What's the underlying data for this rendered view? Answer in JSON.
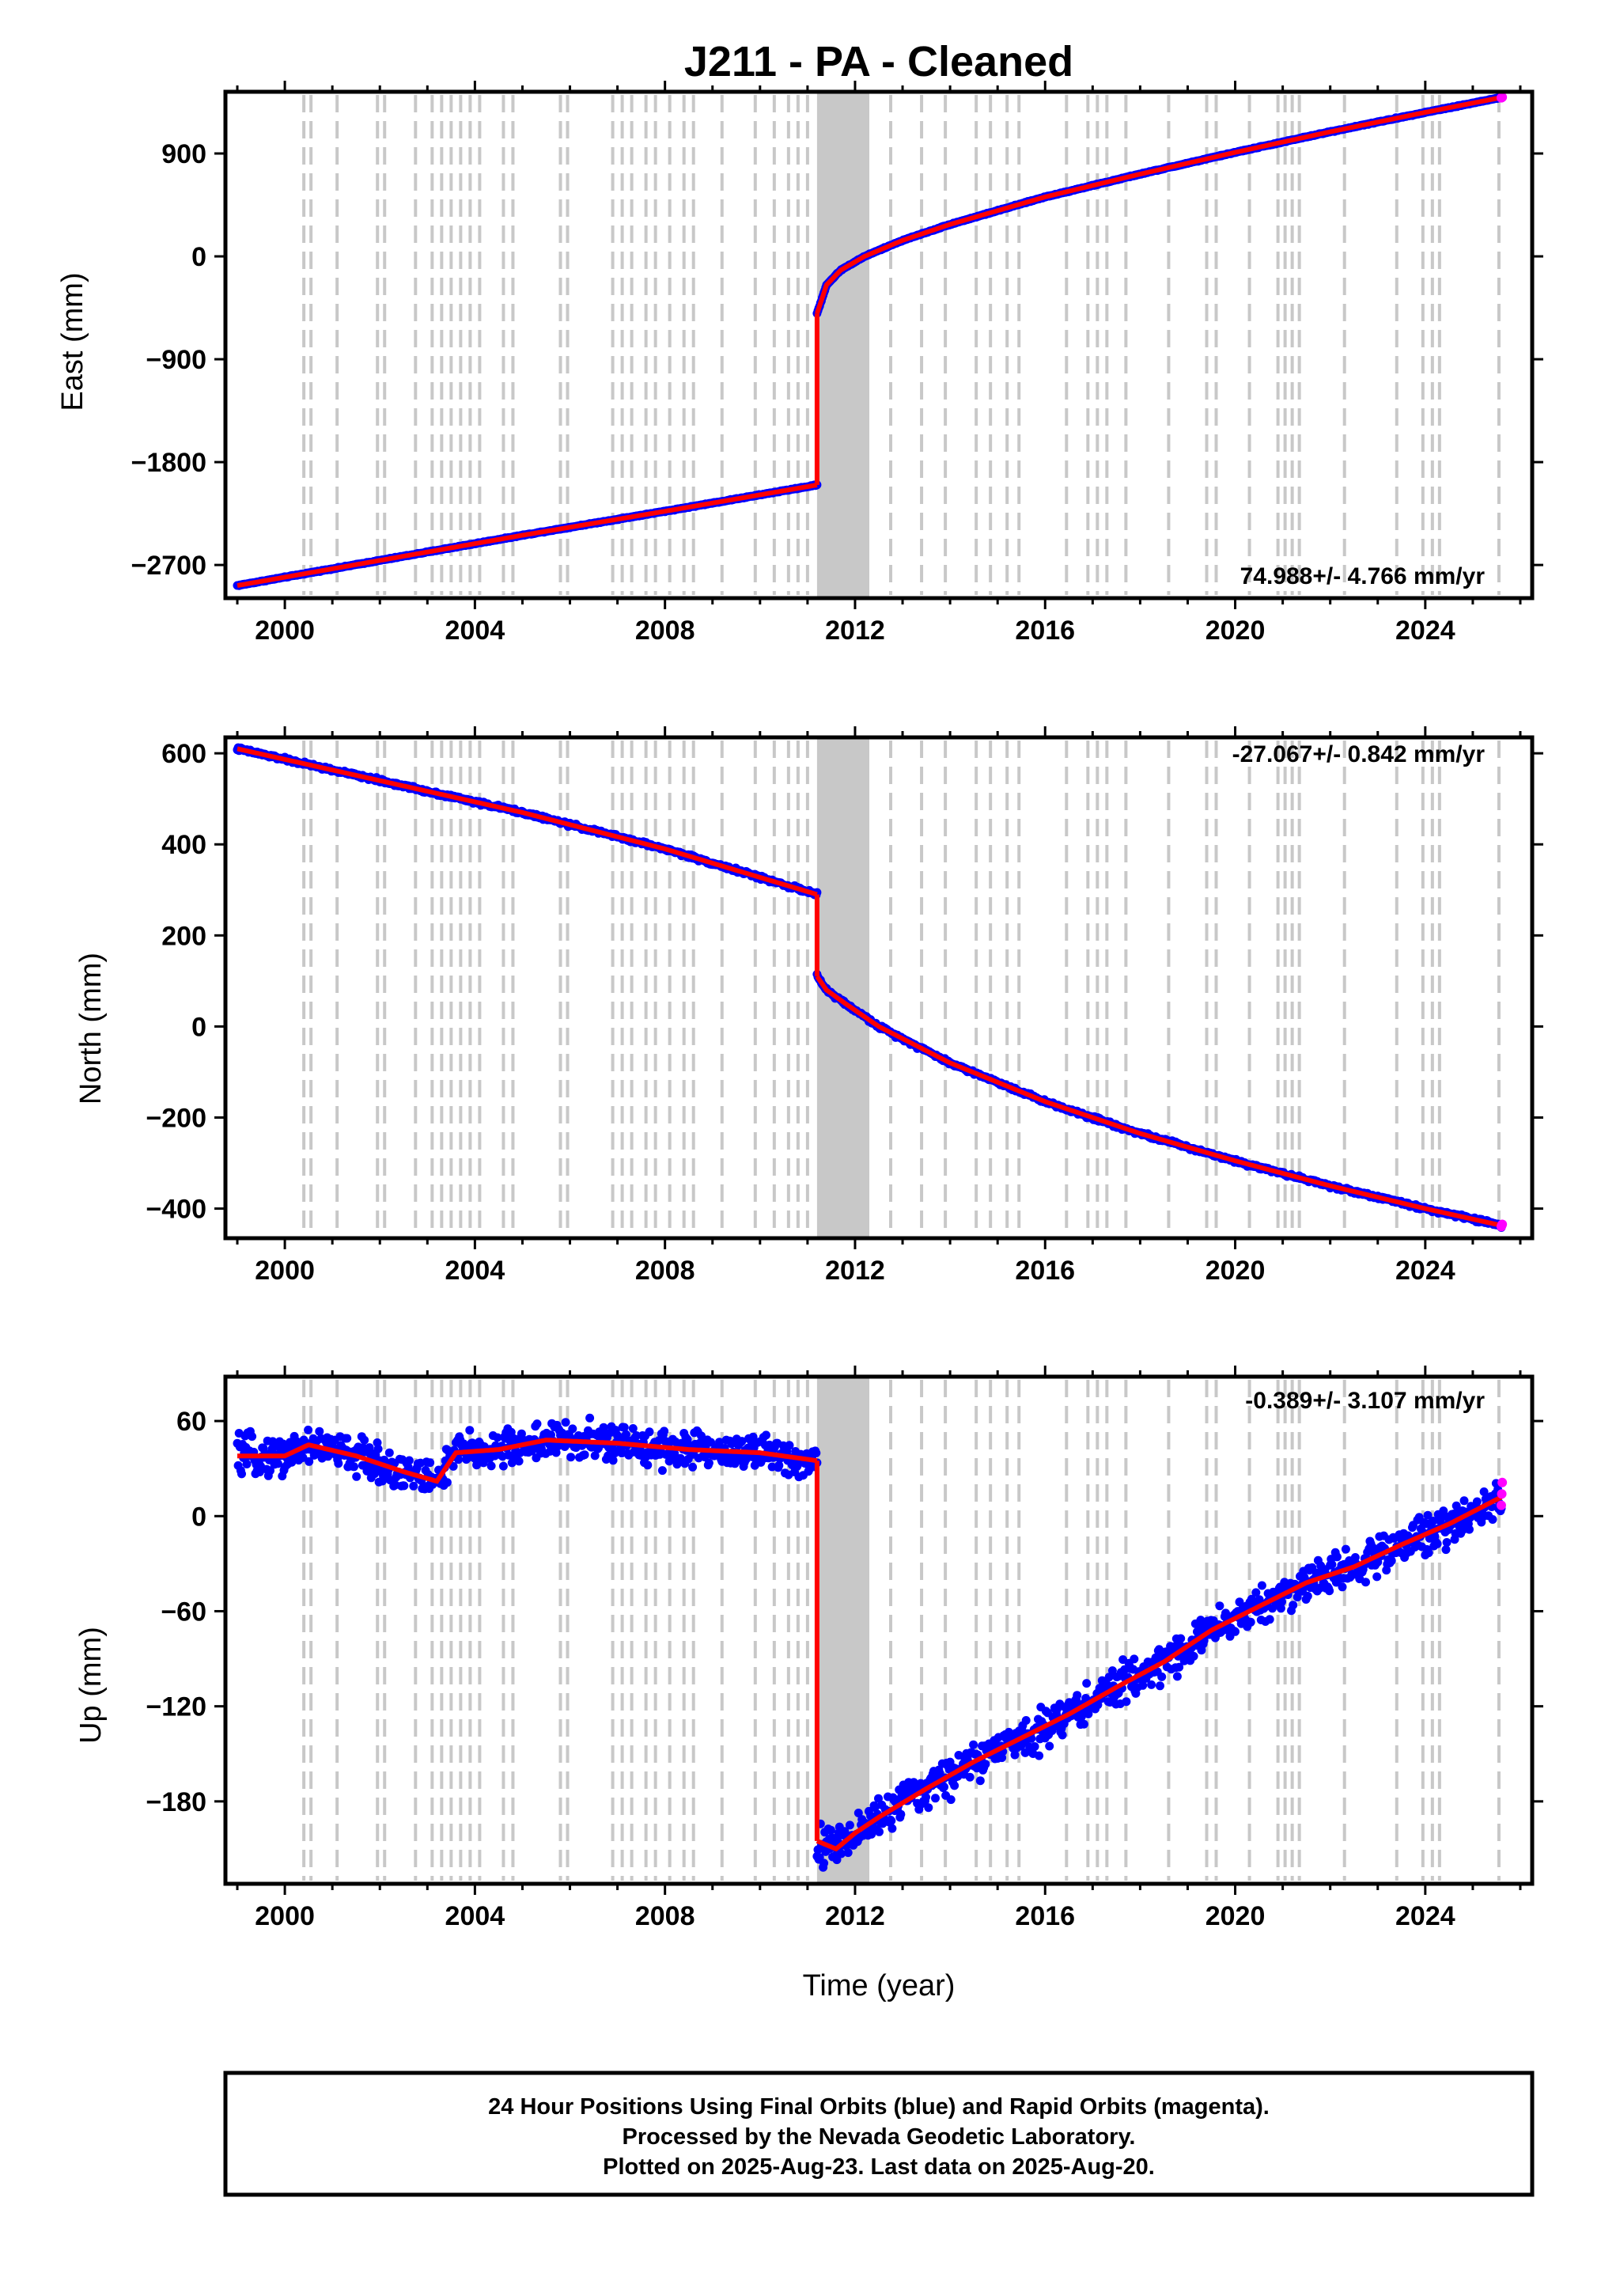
{
  "title": "J211  - PA - Cleaned",
  "xlabel": "Time (year)",
  "footer": {
    "line1": "24 Hour Positions Using Final Orbits (blue) and Rapid Orbits (magenta).",
    "line2": "Processed by the Nevada Geodetic Laboratory.",
    "line3": "Plotted on 2025-Aug-23. Last data on 2025-Aug-20."
  },
  "colors": {
    "final": "#0000ff",
    "rapid": "#ff00ff",
    "model": "#ff0000",
    "event_lines": "#c8c8c8"
  },
  "chart_data": [
    {
      "type": "scatter",
      "component": "East",
      "ylabel": "East (mm)",
      "rate_text": "74.988+/- 4.766 mm/yr",
      "rate_position": "bottom-right",
      "xlim": [
        1998.75,
        2026.25
      ],
      "ylim": [
        -2990,
        1440
      ],
      "xticks": [
        "2000",
        "2004",
        "2008",
        "2012",
        "2016",
        "2020",
        "2024"
      ],
      "yticks": [
        "900",
        "0",
        "−900",
        "−1800",
        "−2700"
      ],
      "ytick_values": [
        900,
        0,
        -900,
        -1800,
        -2700
      ],
      "grid": false,
      "series": [
        {
          "segment": "pre-2011",
          "x": [
            1999.0,
            2002.0,
            2005.0,
            2008.0,
            2011.2
          ],
          "y": [
            -2880,
            -2660,
            -2440,
            -2230,
            -2000
          ]
        },
        {
          "segment": "post-2011",
          "x": [
            2011.2,
            2011.4,
            2011.7,
            2012.2,
            2013.0,
            2014.0,
            2016.0,
            2018.0,
            2020.0,
            2022.0,
            2024.0,
            2025.6
          ],
          "y": [
            -500,
            -250,
            -120,
            0,
            140,
            280,
            520,
            720,
            910,
            1090,
            1260,
            1390
          ]
        }
      ],
      "rapid_last": {
        "x": 2025.6,
        "y": 1390
      }
    },
    {
      "type": "scatter",
      "component": "North",
      "ylabel": "North (mm)",
      "rate_text": "-27.067+/- 0.842 mm/yr",
      "rate_position": "top-right",
      "xlim": [
        1998.75,
        2026.25
      ],
      "ylim": [
        -465,
        635
      ],
      "xticks": [
        "2000",
        "2004",
        "2008",
        "2012",
        "2016",
        "2020",
        "2024"
      ],
      "yticks": [
        "600",
        "400",
        "200",
        "0",
        "−200",
        "−400"
      ],
      "ytick_values": [
        600,
        400,
        200,
        0,
        -200,
        -400
      ],
      "grid": false,
      "series": [
        {
          "segment": "pre-2011",
          "x": [
            1999.0,
            2002.0,
            2005.0,
            2008.0,
            2011.2
          ],
          "y": [
            610,
            540,
            470,
            390,
            290
          ]
        },
        {
          "segment": "post-2011",
          "x": [
            2011.2,
            2011.4,
            2011.8,
            2012.5,
            2014.0,
            2016.0,
            2018.0,
            2020.0,
            2022.0,
            2024.0,
            2025.6
          ],
          "y": [
            110,
            80,
            50,
            0,
            -80,
            -165,
            -235,
            -295,
            -350,
            -400,
            -437
          ]
        }
      ],
      "rapid_last": {
        "x": 2025.6,
        "y": -437
      }
    },
    {
      "type": "scatter",
      "component": "Up",
      "ylabel": "Up (mm)",
      "rate_text": "-0.389+/- 3.107 mm/yr",
      "rate_position": "top-right",
      "xlim": [
        1998.75,
        2026.25
      ],
      "ylim": [
        -232,
        88
      ],
      "xticks": [
        "2000",
        "2004",
        "2008",
        "2012",
        "2016",
        "2020",
        "2024"
      ],
      "yticks": [
        "60",
        "0",
        "−60",
        "−120",
        "−180"
      ],
      "ytick_values": [
        60,
        0,
        -60,
        -120,
        -180
      ],
      "grid": false,
      "series": [
        {
          "segment": "pre-2011",
          "x": [
            1999.0,
            2000.0,
            2000.5,
            2001.5,
            2002.5,
            2003.2,
            2003.6,
            2004.5,
            2005.5,
            2007.0,
            2008.5,
            2010.0,
            2011.2
          ],
          "y": [
            38,
            38,
            45,
            38,
            28,
            22,
            40,
            42,
            48,
            46,
            42,
            40,
            35
          ]
        },
        {
          "segment": "post-2011",
          "x": [
            2011.2,
            2011.6,
            2012.0,
            2012.5,
            2013.5,
            2014.5,
            2015.5,
            2016.5,
            2017.5,
            2018.5,
            2019.5,
            2020.5,
            2021.5,
            2022.5,
            2023.5,
            2024.5,
            2025.6
          ],
          "y": [
            -205,
            -210,
            -200,
            -190,
            -172,
            -155,
            -140,
            -125,
            -108,
            -92,
            -72,
            -57,
            -42,
            -32,
            -18,
            -5,
            12
          ]
        }
      ],
      "rapid_last": {
        "x": 2025.6,
        "y": 14
      }
    }
  ],
  "event_lines_years": [
    2000.4,
    2000.55,
    2001.1,
    2001.95,
    2002.1,
    2002.75,
    2003.1,
    2003.3,
    2003.5,
    2003.7,
    2003.9,
    2004.1,
    2004.6,
    2004.8,
    2005.8,
    2005.95,
    2006.9,
    2007.1,
    2007.3,
    2007.6,
    2007.8,
    2008.1,
    2008.4,
    2008.6,
    2009.2,
    2009.9,
    2010.3,
    2010.6,
    2010.8,
    2011.0,
    2011.95,
    2012.2,
    2012.75,
    2013.4,
    2013.9,
    2014.55,
    2014.85,
    2015.2,
    2015.45,
    2016.45,
    2016.9,
    2017.1,
    2017.3,
    2017.7,
    2018.6,
    2019.4,
    2019.6,
    2020.3,
    2020.9,
    2021.05,
    2021.2,
    2021.35,
    2022.3,
    2023.4,
    2023.95,
    2024.15,
    2024.3,
    2025.55
  ],
  "event_band_years": [
    2011.2,
    2012.3
  ]
}
